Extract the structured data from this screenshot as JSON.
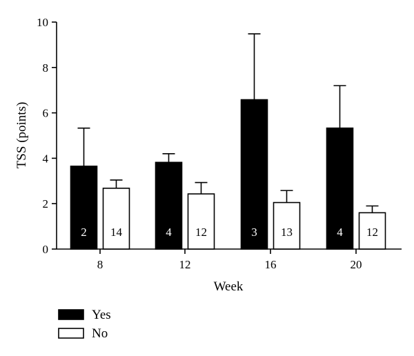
{
  "chart_data": {
    "type": "bar",
    "xlabel": "Week",
    "ylabel": "TSS (points)",
    "ylim": [
      0,
      10
    ],
    "yticks": [
      0,
      2,
      4,
      6,
      8,
      10
    ],
    "categories": [
      "8",
      "12",
      "16",
      "20"
    ],
    "error_bars": "upper",
    "legend_position": "bottom-left",
    "series": [
      {
        "name": "Yes",
        "fill": "#000000",
        "count_text_color": "#ffffff",
        "values": [
          3.65,
          3.82,
          6.58,
          5.33
        ],
        "errors": [
          1.68,
          0.38,
          2.9,
          1.87
        ],
        "counts": [
          "2",
          "4",
          "3",
          "4"
        ]
      },
      {
        "name": "No",
        "fill": "#ffffff",
        "count_text_color": "#000000",
        "values": [
          2.68,
          2.43,
          2.05,
          1.6
        ],
        "errors": [
          0.36,
          0.5,
          0.53,
          0.3
        ],
        "counts": [
          "14",
          "12",
          "13",
          "12"
        ]
      }
    ]
  }
}
